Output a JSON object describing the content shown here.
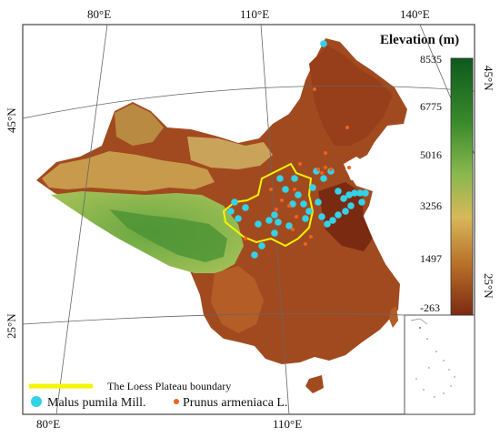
{
  "graticule": {
    "top_longitudes": [
      "80°E",
      "110°E",
      "140°E"
    ],
    "bottom_longitudes": [
      "80°E",
      "110°E"
    ],
    "left_latitudes": [
      "45°N",
      "25°N"
    ],
    "right_latitudes": [
      "45°N",
      "25°N"
    ]
  },
  "elevation_scale": {
    "title": "Elevation (m)",
    "ticks": [
      "8535",
      "6775",
      "5016",
      "3256",
      "1497",
      "-263"
    ],
    "colors": [
      "#0e5a1e",
      "#3a8a2c",
      "#89b84e",
      "#d6b85a",
      "#b9712a",
      "#7d2a12"
    ]
  },
  "legend": {
    "boundary_label": "The Loess Plateau boundary",
    "boundary_color": "#f5f500",
    "species": [
      {
        "label": "Malus pumila Mill.",
        "color": "#34d2e8"
      },
      {
        "label": "Prunus armeniaca L.",
        "color": "#f2601e"
      }
    ]
  },
  "regions": {
    "loess_plateau": "The Loess Plateau"
  }
}
